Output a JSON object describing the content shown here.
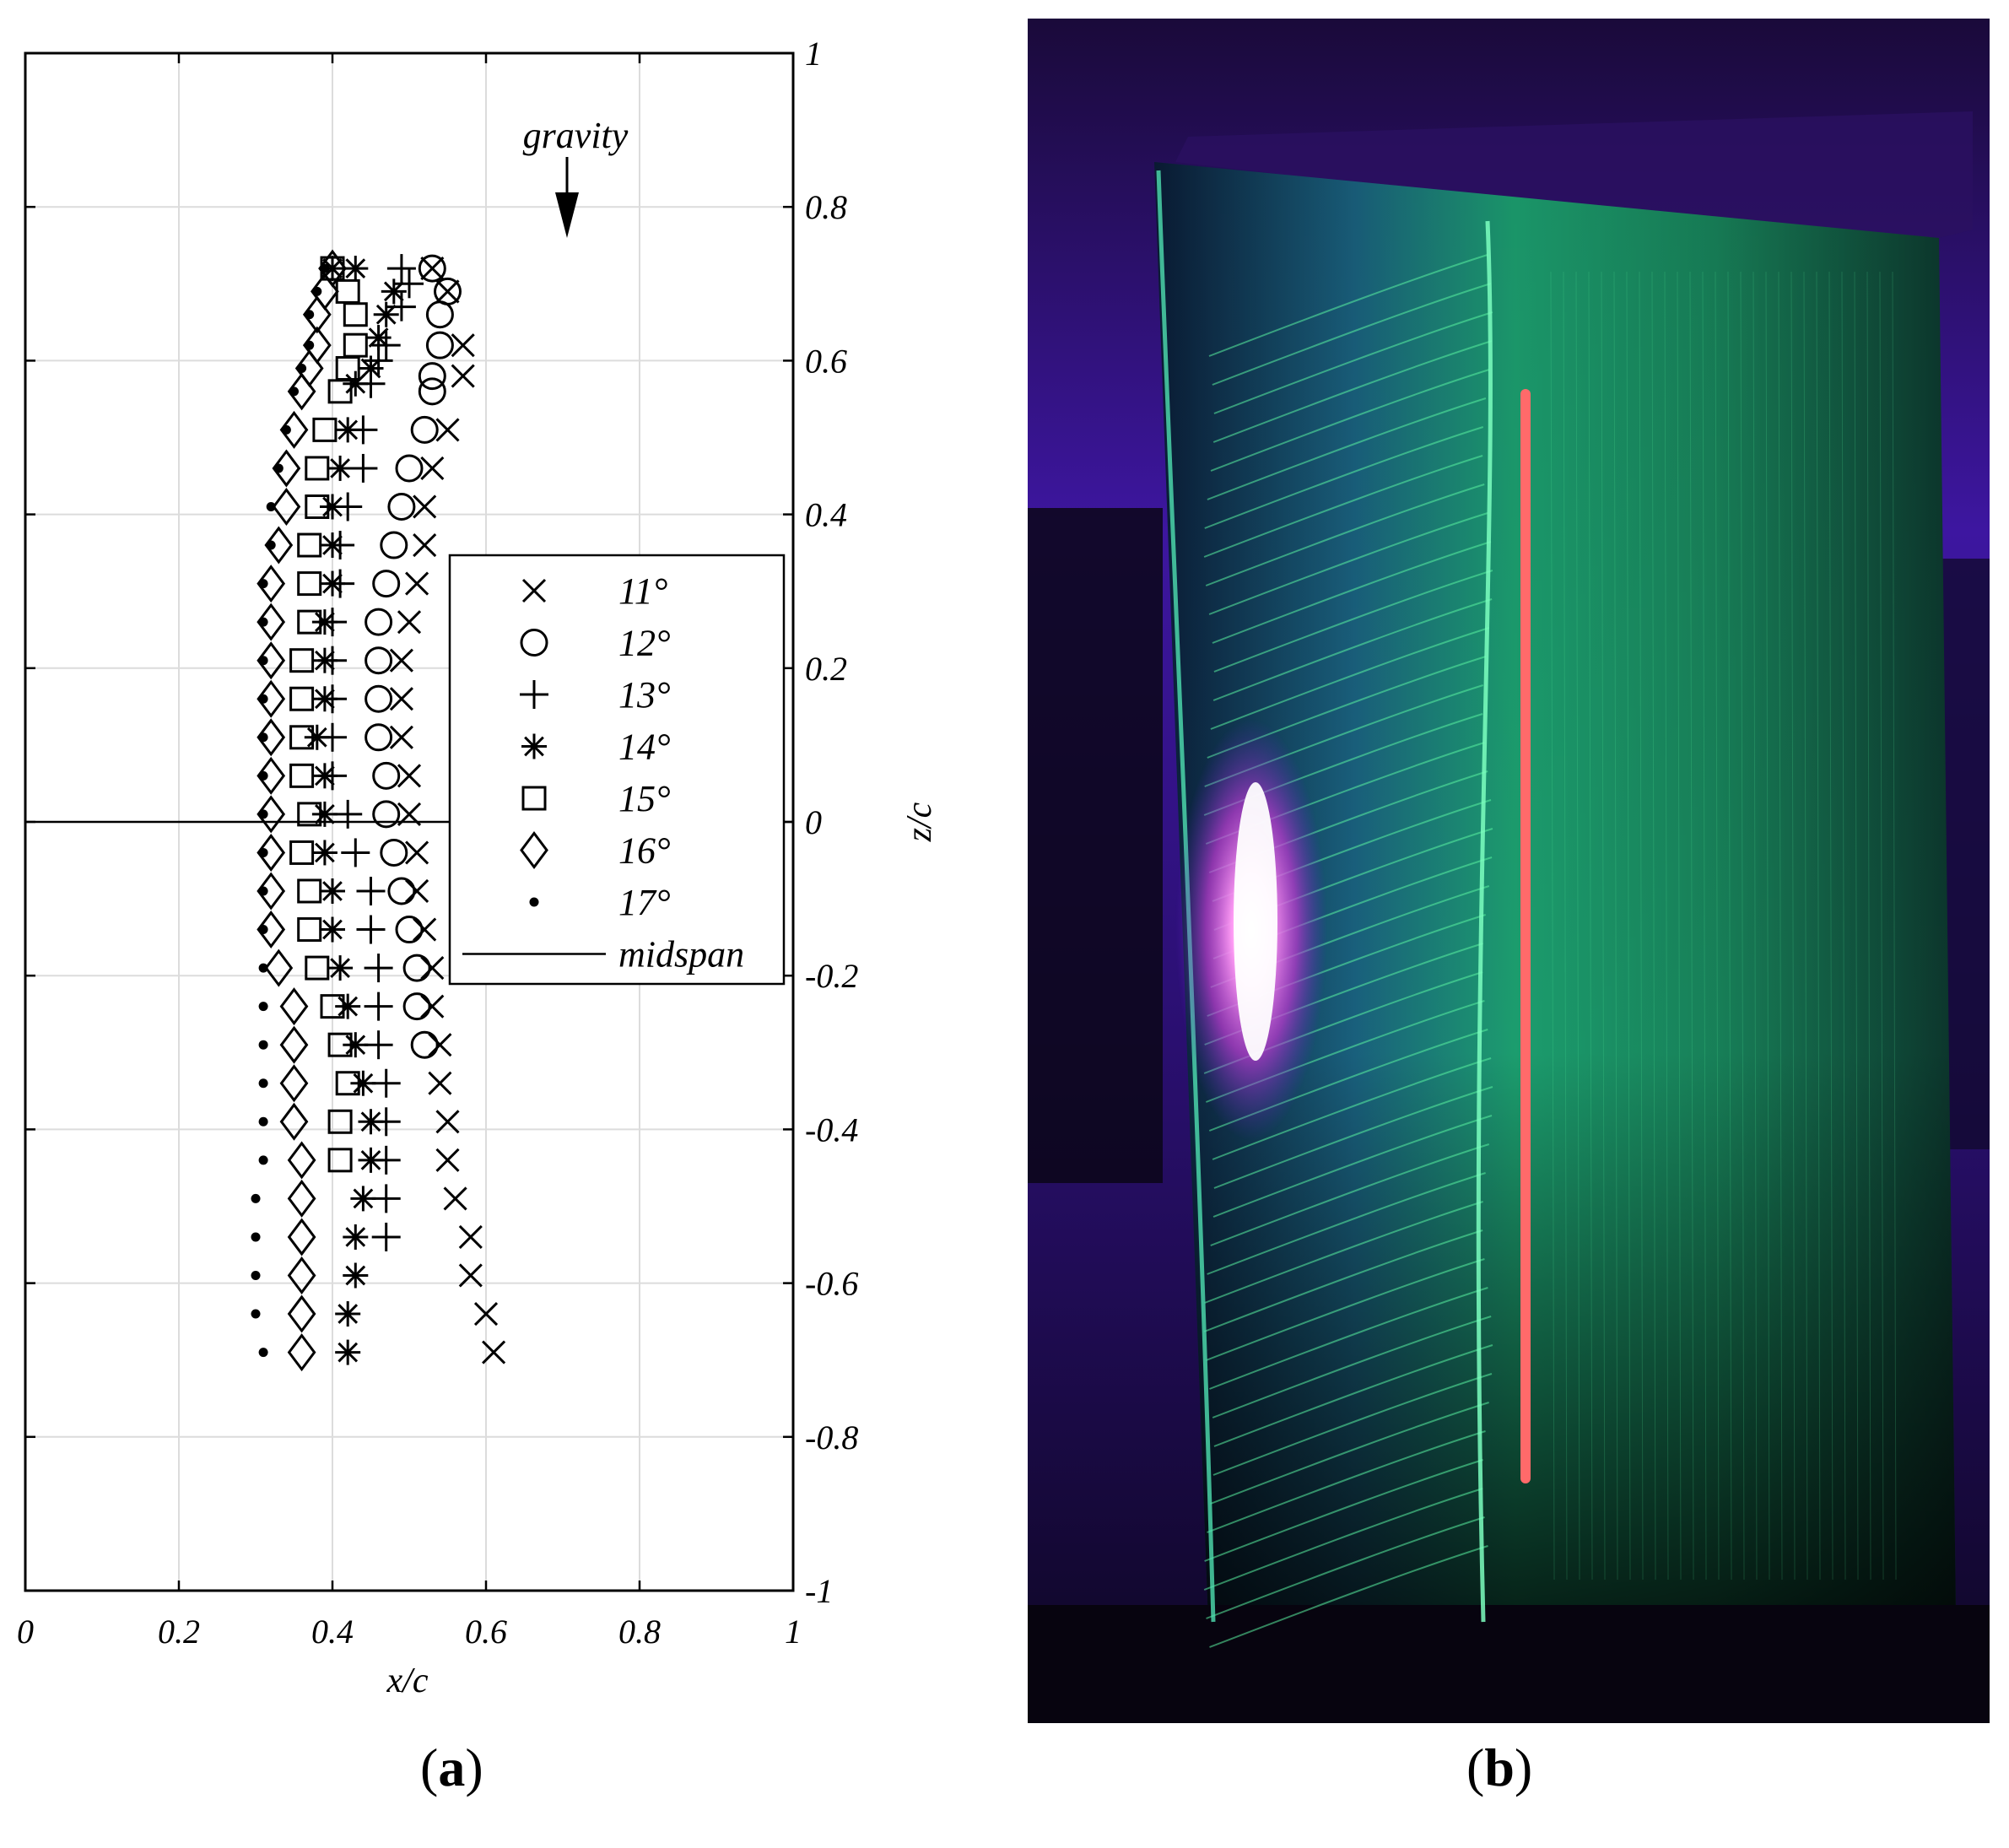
{
  "panels": {
    "a": {
      "label_open": "(",
      "letter": "a",
      "label_close": ")"
    },
    "b": {
      "label_open": "(",
      "letter": "b",
      "label_close": ")"
    }
  },
  "annotation": {
    "text": "gravity"
  },
  "colors": {
    "photo_background": "#1a0a3a",
    "photo_violet": "#5a1fc9",
    "airfoil_green": "#1fae7a",
    "streak_green": "#59f0a0",
    "uv_pink": "#ff6cf0",
    "tuft_red": "#ff6a6a"
  },
  "chart_data": {
    "type": "scatter",
    "title": "",
    "xlabel": "x/c",
    "ylabel": "z/c",
    "xlim": [
      0,
      1
    ],
    "ylim": [
      -1,
      1
    ],
    "xticks": [
      0,
      0.2,
      0.4,
      0.6,
      0.8,
      1
    ],
    "yticks": [
      -1,
      -0.8,
      -0.6,
      -0.4,
      -0.2,
      0,
      0.2,
      0.4,
      0.6,
      0.8,
      1
    ],
    "xtick_labels": [
      "0",
      "0.2",
      "0.4",
      "0.6",
      "0.8",
      "1"
    ],
    "ytick_labels": [
      "-1",
      "-0.8",
      "-0.6",
      "-0.4",
      "-0.2",
      "0",
      "0.2",
      "0.4",
      "0.6",
      "0.8",
      "1"
    ],
    "grid": true,
    "legend_position": "right",
    "midspan": {
      "name": "midspan",
      "z": 0
    },
    "series": [
      {
        "name": "11°",
        "marker": "x",
        "points": [
          [
            0.53,
            0.72
          ],
          [
            0.55,
            0.69
          ],
          [
            0.57,
            0.62
          ],
          [
            0.57,
            0.58
          ],
          [
            0.55,
            0.51
          ],
          [
            0.53,
            0.46
          ],
          [
            0.52,
            0.41
          ],
          [
            0.52,
            0.36
          ],
          [
            0.51,
            0.31
          ],
          [
            0.5,
            0.26
          ],
          [
            0.49,
            0.21
          ],
          [
            0.49,
            0.16
          ],
          [
            0.49,
            0.11
          ],
          [
            0.5,
            0.06
          ],
          [
            0.5,
            0.01
          ],
          [
            0.51,
            -0.04
          ],
          [
            0.51,
            -0.09
          ],
          [
            0.52,
            -0.14
          ],
          [
            0.53,
            -0.19
          ],
          [
            0.53,
            -0.24
          ],
          [
            0.54,
            -0.29
          ],
          [
            0.54,
            -0.34
          ],
          [
            0.55,
            -0.39
          ],
          [
            0.55,
            -0.44
          ],
          [
            0.56,
            -0.49
          ],
          [
            0.58,
            -0.54
          ],
          [
            0.58,
            -0.59
          ],
          [
            0.6,
            -0.64
          ],
          [
            0.61,
            -0.69
          ]
        ]
      },
      {
        "name": "12°",
        "marker": "o",
        "points": [
          [
            0.53,
            0.72
          ],
          [
            0.55,
            0.69
          ],
          [
            0.54,
            0.66
          ],
          [
            0.54,
            0.62
          ],
          [
            0.53,
            0.58
          ],
          [
            0.53,
            0.56
          ],
          [
            0.52,
            0.51
          ],
          [
            0.5,
            0.46
          ],
          [
            0.49,
            0.41
          ],
          [
            0.48,
            0.36
          ],
          [
            0.47,
            0.31
          ],
          [
            0.46,
            0.26
          ],
          [
            0.46,
            0.21
          ],
          [
            0.46,
            0.16
          ],
          [
            0.46,
            0.11
          ],
          [
            0.47,
            0.06
          ],
          [
            0.47,
            0.01
          ],
          [
            0.48,
            -0.04
          ],
          [
            0.49,
            -0.09
          ],
          [
            0.5,
            -0.14
          ],
          [
            0.51,
            -0.19
          ],
          [
            0.51,
            -0.24
          ],
          [
            0.52,
            -0.29
          ]
        ]
      },
      {
        "name": "13°",
        "marker": "+",
        "points": [
          [
            0.49,
            0.72
          ],
          [
            0.5,
            0.7
          ],
          [
            0.49,
            0.67
          ],
          [
            0.47,
            0.62
          ],
          [
            0.46,
            0.6
          ],
          [
            0.45,
            0.57
          ],
          [
            0.44,
            0.51
          ],
          [
            0.44,
            0.46
          ],
          [
            0.42,
            0.41
          ],
          [
            0.41,
            0.36
          ],
          [
            0.41,
            0.31
          ],
          [
            0.4,
            0.26
          ],
          [
            0.4,
            0.21
          ],
          [
            0.4,
            0.16
          ],
          [
            0.4,
            0.11
          ],
          [
            0.4,
            0.06
          ],
          [
            0.42,
            0.01
          ],
          [
            0.43,
            -0.04
          ],
          [
            0.45,
            -0.09
          ],
          [
            0.45,
            -0.14
          ],
          [
            0.46,
            -0.19
          ],
          [
            0.46,
            -0.24
          ],
          [
            0.46,
            -0.29
          ],
          [
            0.47,
            -0.34
          ],
          [
            0.47,
            -0.39
          ],
          [
            0.47,
            -0.44
          ],
          [
            0.47,
            -0.49
          ],
          [
            0.47,
            -0.54
          ]
        ]
      },
      {
        "name": "14°",
        "marker": "*",
        "points": [
          [
            0.4,
            0.72
          ],
          [
            0.43,
            0.72
          ],
          [
            0.48,
            0.69
          ],
          [
            0.47,
            0.66
          ],
          [
            0.46,
            0.63
          ],
          [
            0.45,
            0.59
          ],
          [
            0.43,
            0.57
          ],
          [
            0.42,
            0.51
          ],
          [
            0.41,
            0.46
          ],
          [
            0.4,
            0.41
          ],
          [
            0.4,
            0.36
          ],
          [
            0.4,
            0.31
          ],
          [
            0.39,
            0.26
          ],
          [
            0.39,
            0.21
          ],
          [
            0.39,
            0.16
          ],
          [
            0.38,
            0.11
          ],
          [
            0.39,
            0.06
          ],
          [
            0.39,
            0.01
          ],
          [
            0.39,
            -0.04
          ],
          [
            0.4,
            -0.09
          ],
          [
            0.4,
            -0.14
          ],
          [
            0.41,
            -0.19
          ],
          [
            0.42,
            -0.24
          ],
          [
            0.43,
            -0.29
          ],
          [
            0.44,
            -0.34
          ],
          [
            0.45,
            -0.39
          ],
          [
            0.45,
            -0.44
          ],
          [
            0.44,
            -0.49
          ],
          [
            0.43,
            -0.54
          ],
          [
            0.43,
            -0.59
          ],
          [
            0.42,
            -0.64
          ],
          [
            0.42,
            -0.69
          ]
        ]
      },
      {
        "name": "15°",
        "marker": "square",
        "points": [
          [
            0.4,
            0.72
          ],
          [
            0.42,
            0.69
          ],
          [
            0.43,
            0.66
          ],
          [
            0.43,
            0.62
          ],
          [
            0.42,
            0.59
          ],
          [
            0.41,
            0.56
          ],
          [
            0.39,
            0.51
          ],
          [
            0.38,
            0.46
          ],
          [
            0.38,
            0.41
          ],
          [
            0.37,
            0.36
          ],
          [
            0.37,
            0.31
          ],
          [
            0.37,
            0.26
          ],
          [
            0.36,
            0.21
          ],
          [
            0.36,
            0.16
          ],
          [
            0.36,
            0.11
          ],
          [
            0.36,
            0.06
          ],
          [
            0.37,
            0.01
          ],
          [
            0.36,
            -0.04
          ],
          [
            0.37,
            -0.09
          ],
          [
            0.37,
            -0.14
          ],
          [
            0.38,
            -0.19
          ],
          [
            0.4,
            -0.24
          ],
          [
            0.41,
            -0.29
          ],
          [
            0.42,
            -0.34
          ],
          [
            0.41,
            -0.39
          ],
          [
            0.41,
            -0.44
          ]
        ]
      },
      {
        "name": "16°",
        "marker": "diamond",
        "points": [
          [
            0.4,
            0.72
          ],
          [
            0.39,
            0.69
          ],
          [
            0.38,
            0.66
          ],
          [
            0.38,
            0.62
          ],
          [
            0.37,
            0.59
          ],
          [
            0.36,
            0.56
          ],
          [
            0.35,
            0.51
          ],
          [
            0.34,
            0.46
          ],
          [
            0.34,
            0.41
          ],
          [
            0.33,
            0.36
          ],
          [
            0.32,
            0.31
          ],
          [
            0.32,
            0.26
          ],
          [
            0.32,
            0.21
          ],
          [
            0.32,
            0.16
          ],
          [
            0.32,
            0.11
          ],
          [
            0.32,
            0.06
          ],
          [
            0.32,
            0.01
          ],
          [
            0.32,
            -0.04
          ],
          [
            0.32,
            -0.09
          ],
          [
            0.32,
            -0.14
          ],
          [
            0.33,
            -0.19
          ],
          [
            0.35,
            -0.24
          ],
          [
            0.35,
            -0.29
          ],
          [
            0.35,
            -0.34
          ],
          [
            0.35,
            -0.39
          ],
          [
            0.36,
            -0.44
          ],
          [
            0.36,
            -0.49
          ],
          [
            0.36,
            -0.54
          ],
          [
            0.36,
            -0.59
          ],
          [
            0.36,
            -0.64
          ],
          [
            0.36,
            -0.69
          ]
        ]
      },
      {
        "name": "17°",
        "marker": "dot",
        "points": [
          [
            0.39,
            0.72
          ],
          [
            0.38,
            0.69
          ],
          [
            0.37,
            0.66
          ],
          [
            0.37,
            0.62
          ],
          [
            0.36,
            0.59
          ],
          [
            0.35,
            0.56
          ],
          [
            0.34,
            0.51
          ],
          [
            0.33,
            0.46
          ],
          [
            0.32,
            0.41
          ],
          [
            0.32,
            0.36
          ],
          [
            0.31,
            0.31
          ],
          [
            0.31,
            0.26
          ],
          [
            0.31,
            0.21
          ],
          [
            0.31,
            0.16
          ],
          [
            0.31,
            0.11
          ],
          [
            0.31,
            0.06
          ],
          [
            0.31,
            0.01
          ],
          [
            0.31,
            -0.04
          ],
          [
            0.31,
            -0.09
          ],
          [
            0.31,
            -0.14
          ],
          [
            0.31,
            -0.19
          ],
          [
            0.31,
            -0.24
          ],
          [
            0.31,
            -0.29
          ],
          [
            0.31,
            -0.34
          ],
          [
            0.31,
            -0.39
          ],
          [
            0.31,
            -0.44
          ],
          [
            0.3,
            -0.49
          ],
          [
            0.3,
            -0.54
          ],
          [
            0.3,
            -0.59
          ],
          [
            0.3,
            -0.64
          ],
          [
            0.31,
            -0.69
          ]
        ]
      }
    ]
  }
}
